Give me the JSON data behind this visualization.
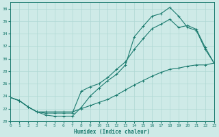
{
  "xlabel": "Humidex (Indice chaleur)",
  "xlim": [
    0,
    23
  ],
  "ylim": [
    20,
    39
  ],
  "yticks": [
    20,
    22,
    24,
    26,
    28,
    30,
    32,
    34,
    36,
    38
  ],
  "xticks": [
    0,
    1,
    2,
    3,
    4,
    5,
    6,
    7,
    8,
    9,
    10,
    11,
    12,
    13,
    14,
    15,
    16,
    17,
    18,
    19,
    20,
    21,
    22,
    23
  ],
  "bg_color": "#ceeae7",
  "line_color": "#1a7a6e",
  "grid_color": "#afd8d3",
  "curve1_x": [
    0,
    1,
    2,
    3,
    4,
    5,
    6,
    7,
    8,
    9,
    10,
    11,
    12,
    13,
    14,
    15,
    16,
    17,
    18,
    19,
    20,
    21,
    22,
    23
  ],
  "curve1_y": [
    23.8,
    23.3,
    22.3,
    21.5,
    21.0,
    20.8,
    20.8,
    20.8,
    22.2,
    24.0,
    25.3,
    26.5,
    27.5,
    29.0,
    33.5,
    35.2,
    36.8,
    37.2,
    38.2,
    36.8,
    35.0,
    34.5,
    31.5,
    29.3
  ],
  "curve2_x": [
    0,
    1,
    2,
    3,
    4,
    5,
    6,
    7,
    8,
    9,
    10,
    11,
    12,
    13,
    14,
    15,
    16,
    17,
    18,
    19,
    20,
    21,
    22,
    23
  ],
  "curve2_y": [
    23.8,
    23.3,
    22.3,
    21.5,
    21.3,
    21.3,
    21.3,
    21.3,
    24.8,
    25.5,
    26.0,
    27.0,
    28.3,
    29.5,
    31.5,
    33.2,
    34.8,
    35.5,
    36.3,
    35.0,
    35.3,
    34.7,
    31.8,
    29.3
  ],
  "curve3_x": [
    0,
    1,
    2,
    3,
    4,
    5,
    6,
    7,
    8,
    9,
    10,
    11,
    12,
    13,
    14,
    15,
    16,
    17,
    18,
    19,
    20,
    21,
    22,
    23
  ],
  "curve3_y": [
    23.8,
    23.3,
    22.3,
    21.5,
    21.5,
    21.5,
    21.5,
    21.5,
    22.0,
    22.5,
    23.0,
    23.5,
    24.2,
    25.0,
    25.8,
    26.5,
    27.2,
    27.8,
    28.3,
    28.5,
    28.8,
    29.0,
    29.0,
    29.3
  ]
}
